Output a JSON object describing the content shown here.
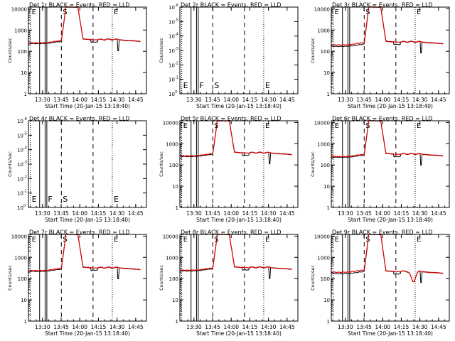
{
  "colors": {
    "events": "#000000",
    "lld": "#e00000",
    "frame": "#000000",
    "background": "#ffffff"
  },
  "common": {
    "xlabel": "Start Time (20-Jan-15 13:18:40)",
    "ylabel": "Counts/sec",
    "x_ticks": [
      "13:30",
      "13:45",
      "14:00",
      "14:15",
      "14:30",
      "14:45"
    ],
    "x_tick_minutes": [
      11.33,
      26.33,
      41.33,
      56.33,
      71.33,
      86.33
    ],
    "x_range_minutes": [
      0,
      95
    ],
    "ticks_log_counts": [
      "1",
      "10",
      "100",
      "1000",
      "10000"
    ],
    "ticks_log_exp": [
      "10",
      "10",
      "10",
      "10",
      "10",
      "10",
      "10"
    ],
    "exp_labels": [
      "0",
      "-1",
      "-2",
      "-3",
      "-4",
      "-5",
      "-6"
    ],
    "markers": [
      "E",
      "F",
      "S",
      "E"
    ],
    "marker_minutes": [
      1.5,
      14.5,
      26.5,
      67.5
    ],
    "solid_lines": [
      9.0,
      13.4,
      14.8
    ],
    "dashed_lines": [
      26.5,
      52.0
    ],
    "dotted_lines": [
      1.5,
      67.5
    ]
  },
  "chart_data": [
    {
      "type": "line",
      "title": "Det 1r BLACK = Events, RED = LLD",
      "flat": false,
      "yscale": "counts",
      "ylim": [
        1,
        12000
      ],
      "base_events": 230,
      "base_lld": 250,
      "peak": 10000,
      "after": 360,
      "drop": null
    },
    {
      "type": "line",
      "title": "Det 2r BLACK = Events, RED = LLD",
      "flat": true,
      "yscale": "exp",
      "ylim": [
        0,
        6
      ]
    },
    {
      "type": "line",
      "title": "Det 3r BLACK = Events, RED = LLD",
      "flat": false,
      "yscale": "counts",
      "ylim": [
        1,
        12000
      ],
      "base_events": 170,
      "base_lld": 200,
      "peak": 10000,
      "after": 280,
      "drop": null
    },
    {
      "type": "line",
      "title": "Det 4r BLACK = Events, RED = LLD",
      "flat": true,
      "yscale": "exp",
      "ylim": [
        0,
        6
      ]
    },
    {
      "type": "line",
      "title": "Det 5r BLACK = Events, RED = LLD",
      "flat": false,
      "yscale": "counts",
      "ylim": [
        1,
        12000
      ],
      "base_events": 250,
      "base_lld": 270,
      "peak": 10000,
      "after": 380,
      "drop": null
    },
    {
      "type": "line",
      "title": "Det 6r BLACK = Events, RED = LLD",
      "flat": false,
      "yscale": "counts",
      "ylim": [
        1,
        12000
      ],
      "base_events": 230,
      "base_lld": 250,
      "peak": 10000,
      "after": 330,
      "drop": null
    },
    {
      "type": "line",
      "title": "Det 7r BLACK = Events, RED = LLD",
      "flat": false,
      "yscale": "counts",
      "ylim": [
        1,
        12000
      ],
      "base_events": 220,
      "base_lld": 240,
      "peak": 10000,
      "after": 330,
      "drop": null
    },
    {
      "type": "line",
      "title": "Det 8r BLACK = Events, RED = LLD",
      "flat": false,
      "yscale": "counts",
      "ylim": [
        1,
        12000
      ],
      "base_events": 230,
      "base_lld": 250,
      "peak": 10000,
      "after": 340,
      "drop": null
    },
    {
      "type": "line",
      "title": "Det 9r BLACK = Events, RED = LLD",
      "flat": false,
      "yscale": "counts",
      "ylim": [
        1,
        12000
      ],
      "base_events": 170,
      "base_lld": 200,
      "peak": 10000,
      "after": 220,
      "drop": 70
    }
  ]
}
